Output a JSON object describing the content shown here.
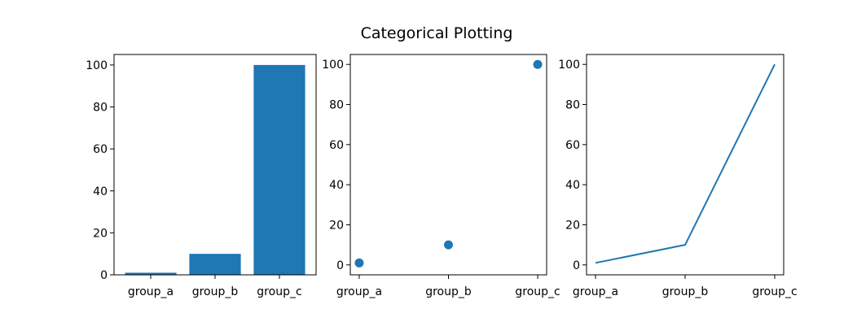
{
  "figure": {
    "suptitle": "Categorical Plotting"
  },
  "colors": {
    "series": "#1f77b4",
    "axes": "#000000",
    "background": "#ffffff"
  },
  "chart_data": [
    {
      "type": "bar",
      "categories": [
        "group_a",
        "group_b",
        "group_c"
      ],
      "values": [
        1,
        10,
        100
      ],
      "ylim": [
        0,
        105
      ],
      "yticks": [
        0,
        20,
        40,
        60,
        80,
        100
      ],
      "grid": false
    },
    {
      "type": "scatter",
      "categories": [
        "group_a",
        "group_b",
        "group_c"
      ],
      "values": [
        1,
        10,
        100
      ],
      "ylim": [
        -4.95,
        104.95
      ],
      "yticks": [
        0,
        20,
        40,
        60,
        80,
        100
      ],
      "grid": false
    },
    {
      "type": "line",
      "categories": [
        "group_a",
        "group_b",
        "group_c"
      ],
      "values": [
        1,
        10,
        100
      ],
      "ylim": [
        -4.95,
        104.95
      ],
      "yticks": [
        0,
        20,
        40,
        60,
        80,
        100
      ],
      "grid": false
    }
  ]
}
